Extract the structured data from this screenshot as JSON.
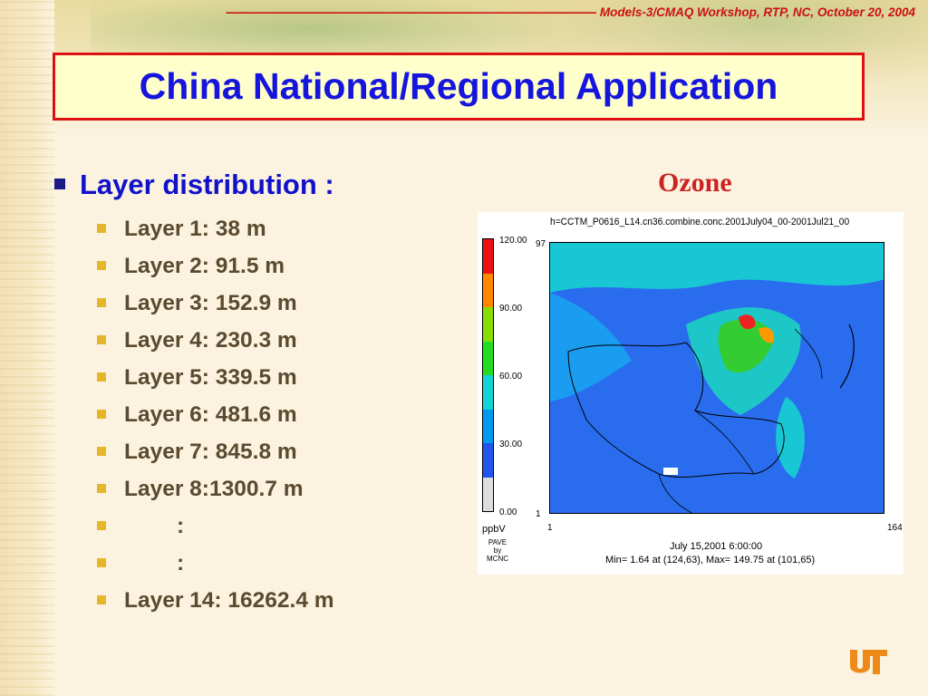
{
  "header": {
    "dashes": "---------------------------------------------------------------------------------------------------------------------",
    "text": "Models-3/CMAQ Workshop, RTP, NC, October 20, 2004"
  },
  "title": "China National/Regional Application",
  "main_bullet": "Layer distribution :",
  "layers": [
    "Layer 1: 38 m",
    "Layer 2: 91.5 m",
    "Layer 3: 152.9 m",
    "Layer 4: 230.3 m",
    "Layer 5: 339.5 m",
    "Layer 6: 481.6 m",
    "Layer 7: 845.8 m",
    "Layer 8:1300.7 m",
    ":",
    ":",
    "Layer 14: 16262.4 m"
  ],
  "figure": {
    "label": "Ozone",
    "title": "h=CCTM_P0616_L14.cn36.combine.conc.2001July04_00-2001Jul21_00",
    "colorbar_ticks": [
      "120.00",
      "90.00",
      "60.00",
      "30.00",
      "0.00"
    ],
    "colorbar_colors": [
      "#ee1111",
      "#ff8800",
      "#88dd00",
      "#22dd22",
      "#11d4d4",
      "#0099ee",
      "#2255ee",
      "#dddddd"
    ],
    "unit": "ppbV",
    "source_lines": [
      "PAVE",
      "by",
      "MCNC"
    ],
    "y_max": "97",
    "y_min": "1",
    "x_min": "1",
    "x_max": "164",
    "time": "July 15,2001 6:00:00",
    "min_max": "Min=    1.64 at (124,63), Max=  149.75 at (101,65)"
  }
}
